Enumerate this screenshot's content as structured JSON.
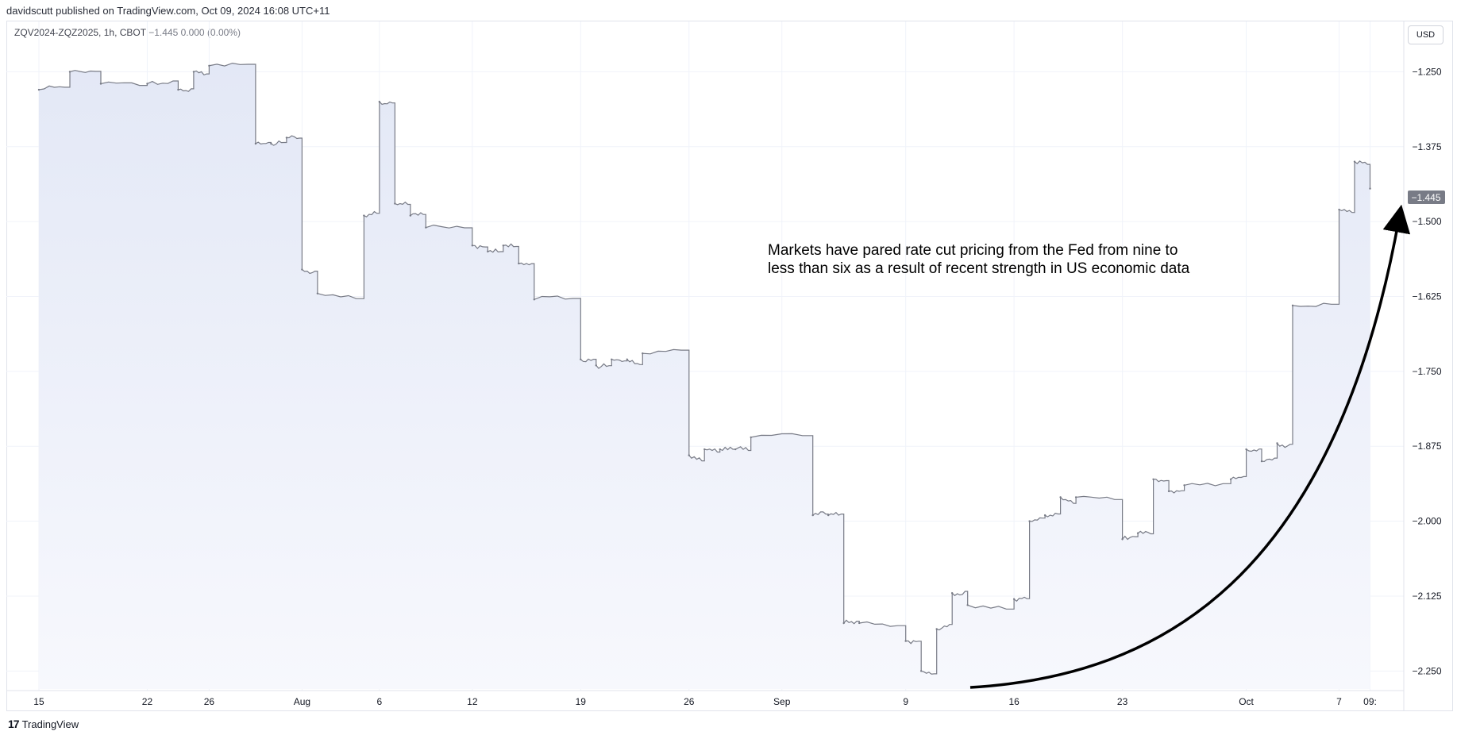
{
  "header": {
    "published_line": "davidscutt published on TradingView.com, Oct 09, 2024 16:08 UTC+11",
    "symbol_name": "ZQV2024-ZQZ2025, 1h, CBOT",
    "symbol_values": "−1.445  0.000 (0.00%)"
  },
  "currency_button": "USD",
  "footer": {
    "logo_mark": "17",
    "brand": "TradingView"
  },
  "annotation": {
    "line1": "Markets have pared rate cut pricing from the Fed from nine to",
    "line2": "less than six as a result of recent strength in US economic data"
  },
  "price_label": "−1.445",
  "colors": {
    "line": "#787b86",
    "fill_top": "#e3e8f6",
    "fill_bottom": "#f7f8fd",
    "grid": "#f0f3fa",
    "price_tag": "#787b86"
  },
  "chart_data": {
    "type": "area",
    "title": "",
    "xlabel": "",
    "ylabel": "",
    "ylim": [
      -2.28,
      -1.17
    ],
    "y_ticks": [
      "-1.250",
      "-1.375",
      "-1.500",
      "-1.625",
      "-1.750",
      "-1.875",
      "-2.000",
      "-2.125",
      "-2.250"
    ],
    "y_tick_values": [
      -1.25,
      -1.375,
      -1.5,
      -1.625,
      -1.75,
      -1.875,
      -2.0,
      -2.125,
      -2.25
    ],
    "x_ticks": [
      "15",
      "22",
      "26",
      "Aug",
      "6",
      "12",
      "19",
      "26",
      "Sep",
      "9",
      "16",
      "23",
      "Oct",
      "7",
      "09:"
    ],
    "x_tick_values": [
      "2024-07-15",
      "2024-07-22",
      "2024-07-26",
      "2024-08-01",
      "2024-08-06",
      "2024-08-12",
      "2024-08-19",
      "2024-08-26",
      "2024-09-01",
      "2024-09-09",
      "2024-09-16",
      "2024-09-23",
      "2024-10-01",
      "2024-10-07",
      "2024-10-09"
    ],
    "series": [
      {
        "x": [
          "2024-07-15",
          "2024-07-17",
          "2024-07-19",
          "2024-07-22",
          "2024-07-24",
          "2024-07-25",
          "2024-07-26",
          "2024-07-29",
          "2024-07-30",
          "2024-07-31",
          "2024-08-01",
          "2024-08-02",
          "2024-08-05",
          "2024-08-06",
          "2024-08-07",
          "2024-08-08",
          "2024-08-09",
          "2024-08-12",
          "2024-08-13",
          "2024-08-14",
          "2024-08-15",
          "2024-08-16",
          "2024-08-19",
          "2024-08-20",
          "2024-08-21",
          "2024-08-22",
          "2024-08-23",
          "2024-08-26",
          "2024-08-27",
          "2024-08-28",
          "2024-08-29",
          "2024-08-30",
          "2024-09-03",
          "2024-09-04",
          "2024-09-05",
          "2024-09-06",
          "2024-09-09",
          "2024-09-10",
          "2024-09-11",
          "2024-09-12",
          "2024-09-13",
          "2024-09-16",
          "2024-09-17",
          "2024-09-18",
          "2024-09-19",
          "2024-09-20",
          "2024-09-23",
          "2024-09-24",
          "2024-09-25",
          "2024-09-26",
          "2024-09-27",
          "2024-09-30",
          "2024-10-01",
          "2024-10-02",
          "2024-10-03",
          "2024-10-04",
          "2024-10-07",
          "2024-10-08",
          "2024-10-09"
        ],
        "y": [
          -1.28,
          -1.25,
          -1.27,
          -1.27,
          -1.28,
          -1.25,
          -1.24,
          -1.37,
          -1.37,
          -1.36,
          -1.58,
          -1.62,
          -1.49,
          -1.3,
          -1.47,
          -1.49,
          -1.51,
          -1.54,
          -1.55,
          -1.54,
          -1.57,
          -1.63,
          -1.73,
          -1.74,
          -1.73,
          -1.73,
          -1.72,
          -1.89,
          -1.88,
          -1.88,
          -1.88,
          -1.86,
          -1.99,
          -1.99,
          -2.17,
          -2.17,
          -2.2,
          -2.25,
          -2.18,
          -2.12,
          -2.14,
          -2.13,
          -2.0,
          -1.99,
          -1.96,
          -1.96,
          -2.03,
          -2.02,
          -1.93,
          -1.95,
          -1.94,
          -1.93,
          -1.88,
          -1.9,
          -1.87,
          -1.64,
          -1.48,
          -1.4,
          -1.445
        ]
      }
    ]
  }
}
